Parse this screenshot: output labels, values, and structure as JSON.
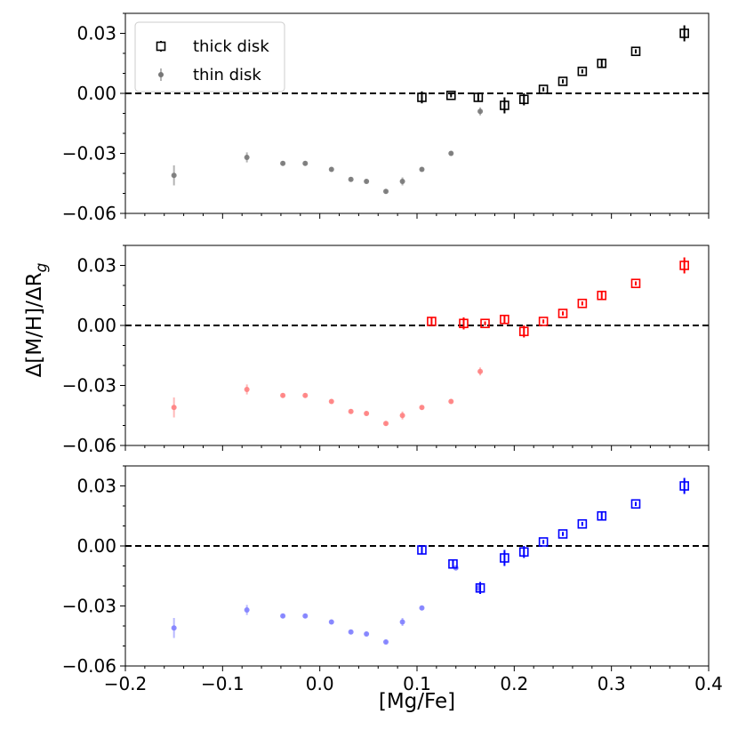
{
  "chart_data": {
    "type": "scatter",
    "xlabel": "[Mg/Fe]",
    "ylabel": "Δ[M/H]/ΔR_g",
    "xlim": [
      -0.2,
      0.4
    ],
    "ylim": [
      -0.06,
      0.04
    ],
    "x_ticks": [
      -0.2,
      -0.1,
      0.0,
      0.1,
      0.2,
      0.3,
      0.4
    ],
    "x_tick_labels": [
      "−0.2",
      "−0.1",
      "0.0",
      "0.1",
      "0.2",
      "0.3",
      "0.4"
    ],
    "y_ticks": [
      0.03,
      0.0,
      -0.03,
      -0.06
    ],
    "y_tick_labels": [
      "0.03",
      "0.00",
      "−0.03",
      "−0.06"
    ],
    "reference_line_y": 0.0,
    "legend": [
      "thick disk",
      "thin disk"
    ],
    "panels": [
      {
        "thick_color": "#000000",
        "thin_color": "#777777",
        "thin_disk": {
          "x": [
            -0.15,
            -0.075,
            -0.038,
            -0.015,
            0.012,
            0.032,
            0.048,
            0.068,
            0.085,
            0.105,
            0.135,
            0.165
          ],
          "y": [
            -0.041,
            -0.032,
            -0.035,
            -0.035,
            -0.038,
            -0.043,
            -0.044,
            -0.049,
            -0.044,
            -0.038,
            -0.03,
            -0.009
          ],
          "err": [
            0.005,
            0.0025,
            0.001,
            0.001,
            0.001,
            0.001,
            0.001,
            0.001,
            0.002,
            0.001,
            0.001,
            0.002
          ]
        },
        "thick_disk": {
          "x": [
            0.105,
            0.135,
            0.163,
            0.19,
            0.21,
            0.23,
            0.25,
            0.27,
            0.29,
            0.325,
            0.375
          ],
          "y": [
            -0.002,
            -0.001,
            -0.002,
            -0.006,
            -0.003,
            0.002,
            0.006,
            0.011,
            0.015,
            0.021,
            0.03
          ],
          "err": [
            0.003,
            0.001,
            0.002,
            0.004,
            0.003,
            0.001,
            0.001,
            0.001,
            0.002,
            0.001,
            0.004
          ]
        }
      },
      {
        "thick_color": "#ff0000",
        "thin_color": "#ff8080",
        "thin_disk": {
          "x": [
            -0.15,
            -0.075,
            -0.038,
            -0.015,
            0.012,
            0.032,
            0.048,
            0.068,
            0.085,
            0.105,
            0.135,
            0.165
          ],
          "y": [
            -0.041,
            -0.032,
            -0.035,
            -0.035,
            -0.038,
            -0.043,
            -0.044,
            -0.049,
            -0.045,
            -0.041,
            -0.038,
            -0.023
          ],
          "err": [
            0.005,
            0.0025,
            0.001,
            0.001,
            0.001,
            0.001,
            0.001,
            0.001,
            0.002,
            0.001,
            0.001,
            0.002
          ]
        },
        "thick_disk": {
          "x": [
            0.115,
            0.148,
            0.17,
            0.19,
            0.21,
            0.23,
            0.25,
            0.27,
            0.29,
            0.325,
            0.375
          ],
          "y": [
            0.002,
            0.001,
            0.001,
            0.003,
            -0.003,
            0.002,
            0.006,
            0.011,
            0.015,
            0.021,
            0.03
          ],
          "err": [
            0.002,
            0.003,
            0.001,
            0.002,
            0.003,
            0.001,
            0.001,
            0.001,
            0.002,
            0.001,
            0.004
          ]
        }
      },
      {
        "thick_color": "#0000ff",
        "thin_color": "#8080ff",
        "thin_disk": {
          "x": [
            -0.15,
            -0.075,
            -0.038,
            -0.015,
            0.012,
            0.032,
            0.048,
            0.068,
            0.085,
            0.105,
            0.14,
            0.163
          ],
          "y": [
            -0.041,
            -0.032,
            -0.035,
            -0.035,
            -0.038,
            -0.043,
            -0.044,
            -0.048,
            -0.038,
            -0.031,
            -0.011,
            -0.021
          ],
          "err": [
            0.005,
            0.0025,
            0.001,
            0.001,
            0.001,
            0.001,
            0.001,
            0.001,
            0.002,
            0.001,
            0.001,
            0.002
          ]
        },
        "thick_disk": {
          "x": [
            0.105,
            0.137,
            0.165,
            0.19,
            0.21,
            0.23,
            0.25,
            0.27,
            0.29,
            0.325,
            0.375
          ],
          "y": [
            -0.002,
            -0.009,
            -0.021,
            -0.006,
            -0.003,
            0.002,
            0.006,
            0.011,
            0.015,
            0.021,
            0.03
          ],
          "err": [
            0.002,
            0.002,
            0.003,
            0.004,
            0.003,
            0.001,
            0.001,
            0.001,
            0.002,
            0.001,
            0.004
          ]
        }
      }
    ]
  }
}
